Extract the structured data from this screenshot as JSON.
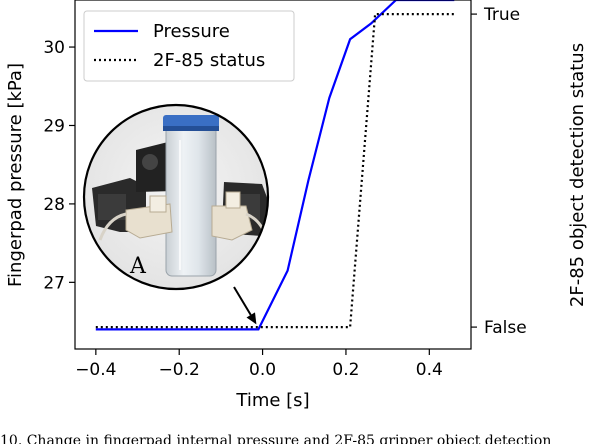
{
  "chart_data": {
    "type": "line",
    "xlabel": "Time [s]",
    "ylabel": "Fingerpad pressure [kPa]",
    "y2label": "2F-85 object detection status",
    "xlim": [
      -0.45,
      0.5
    ],
    "ylim": [
      26.15,
      30.6
    ],
    "y2lim": [
      -0.07,
      1.045
    ],
    "xticks": [
      -0.4,
      -0.2,
      0.0,
      0.2,
      0.4
    ],
    "xtick_labels": [
      "−0.4",
      "−0.2",
      "0.0",
      "0.2",
      "0.4"
    ],
    "yticks": [
      27,
      28,
      29,
      30
    ],
    "ytick_labels": [
      "27",
      "28",
      "29",
      "30"
    ],
    "y2ticks": [
      0,
      1
    ],
    "y2tick_labels": [
      "False",
      "True"
    ],
    "grid": false,
    "legend_position": "upper-left",
    "series": [
      {
        "name": "Pressure",
        "axis": "left",
        "color": "#0000ff",
        "style": "solid",
        "x": [
          -0.4,
          -0.3,
          -0.2,
          -0.1,
          -0.01,
          0.06,
          0.11,
          0.16,
          0.21,
          0.26,
          0.32,
          0.46
        ],
        "y": [
          26.4,
          26.4,
          26.4,
          26.4,
          26.4,
          27.15,
          28.3,
          29.35,
          30.1,
          30.3,
          30.6,
          30.6
        ]
      },
      {
        "name": "2F-85 status",
        "axis": "right",
        "color": "#000000",
        "style": "dotted",
        "x": [
          -0.4,
          0.21,
          0.27,
          0.46
        ],
        "y": [
          0,
          0,
          1,
          1
        ]
      }
    ],
    "annotations": [
      {
        "text": "A",
        "kind": "inset-photo-label",
        "arrow_to": {
          "x": -0.01,
          "y": 26.4
        }
      }
    ]
  },
  "caption_fragment": "10.   Change in fingerpad internal pressure and 2F-85 gripper object detection"
}
